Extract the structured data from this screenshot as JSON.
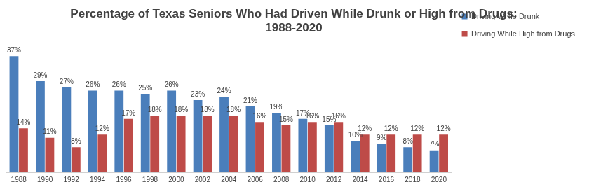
{
  "chart_data": {
    "type": "bar",
    "title": [
      "Percentage of Texas Seniors Who Had Driven While Drunk or High from Drugs:",
      "1988-2020"
    ],
    "categories": [
      "1988",
      "1990",
      "1992",
      "1994",
      "1996",
      "1998",
      "2000",
      "2002",
      "2004",
      "2006",
      "2008",
      "2010",
      "2012",
      "2014",
      "2016",
      "2018",
      "2020"
    ],
    "series": [
      {
        "name": "Driving While Drunk",
        "color": "#4a7ebb",
        "values": [
          37,
          29,
          27,
          26,
          26,
          25,
          26,
          23,
          24,
          21,
          19,
          17,
          15,
          10,
          9,
          8,
          7
        ],
        "value_labels": [
          "37%",
          "29%",
          "27%",
          "26%",
          "26%",
          "25%",
          "26%",
          "23%",
          "24%",
          "21%",
          "19%",
          "17%",
          "15%",
          "10%",
          "9%",
          "8%",
          "7%"
        ]
      },
      {
        "name": "Driving While High from Drugs",
        "color": "#be4b48",
        "values": [
          14,
          11,
          8,
          12,
          17,
          18,
          18,
          18,
          18,
          16,
          15,
          16,
          16,
          12,
          12,
          12,
          12
        ],
        "value_labels": [
          "14%",
          "11%",
          "8%",
          "12%",
          "17%",
          "18%",
          "18%",
          "18%",
          "18%",
          "16%",
          "15%",
          "16%",
          "16%",
          "12%",
          "12%",
          "12%",
          "12%"
        ]
      }
    ],
    "ylim": [
      0,
      40
    ],
    "grid": false,
    "legend": "right",
    "data_labels": true,
    "tick_labels": "x"
  }
}
